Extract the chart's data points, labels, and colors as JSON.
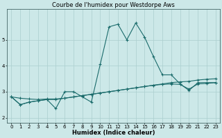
{
  "title": "Courbe de l'humidex pour Westdorpe Aws",
  "xlabel": "Humidex (Indice chaleur)",
  "ylabel": "",
  "background_color": "#cce8e8",
  "grid_color": "#aacece",
  "line_color": "#1a6b6b",
  "xlim": [
    -0.5,
    23.5
  ],
  "ylim": [
    1.8,
    6.2
  ],
  "yticks": [
    2,
    3,
    4,
    5
  ],
  "xticks": [
    0,
    1,
    2,
    3,
    4,
    5,
    6,
    7,
    8,
    9,
    10,
    11,
    12,
    13,
    14,
    15,
    16,
    17,
    18,
    19,
    20,
    21,
    22,
    23
  ],
  "series1_x": [
    0,
    1,
    2,
    3,
    4,
    5,
    6,
    7,
    8,
    9,
    10,
    11,
    12,
    13,
    14,
    15,
    16,
    17,
    18,
    19,
    20,
    21,
    22,
    23
  ],
  "series1_y": [
    2.8,
    2.5,
    2.6,
    2.65,
    2.7,
    2.35,
    3.0,
    3.0,
    2.8,
    2.6,
    4.05,
    5.5,
    5.6,
    5.0,
    5.65,
    5.1,
    4.35,
    3.65,
    3.65,
    3.3,
    3.05,
    3.35,
    3.35,
    3.35
  ],
  "series2_x": [
    0,
    1,
    2,
    3,
    4,
    5,
    6,
    7,
    8,
    9,
    10,
    11,
    12,
    13,
    14,
    15,
    16,
    17,
    18,
    19,
    20,
    21,
    22,
    23
  ],
  "series2_y": [
    2.8,
    2.75,
    2.72,
    2.7,
    2.72,
    2.72,
    2.75,
    2.8,
    2.85,
    2.9,
    2.95,
    3.0,
    3.05,
    3.1,
    3.15,
    3.2,
    3.25,
    3.3,
    3.35,
    3.38,
    3.4,
    3.45,
    3.48,
    3.5
  ],
  "series3_x": [
    0,
    1,
    2,
    3,
    4,
    5,
    6,
    7,
    8,
    9,
    10,
    11,
    12,
    13,
    14,
    15,
    16,
    17,
    18,
    19,
    20,
    21,
    22,
    23
  ],
  "series3_y": [
    2.8,
    2.5,
    2.6,
    2.65,
    2.7,
    2.7,
    2.75,
    2.8,
    2.85,
    2.9,
    2.95,
    3.0,
    3.05,
    3.1,
    3.15,
    3.2,
    3.25,
    3.28,
    3.3,
    3.28,
    3.1,
    3.3,
    3.32,
    3.35
  ],
  "marker": "+",
  "markersize": 3,
  "linewidth": 0.8,
  "title_fontsize": 6,
  "label_fontsize": 6,
  "tick_fontsize": 5
}
